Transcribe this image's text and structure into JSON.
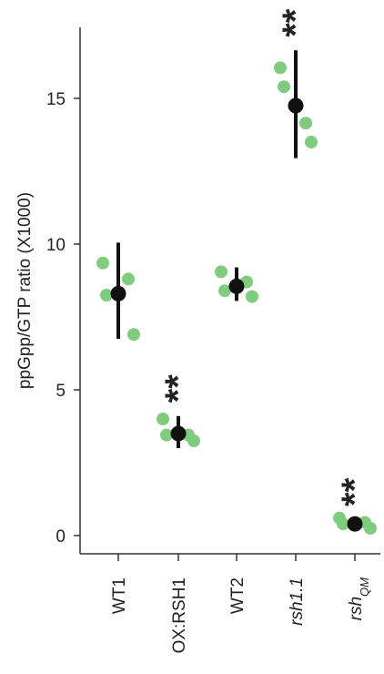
{
  "chart_data": {
    "type": "scatter",
    "ylabel": "ppGpp/GTP ratio (X1000)",
    "ylim": [
      0,
      17.5
    ],
    "yticks": [
      0,
      5,
      10,
      15
    ],
    "categories": [
      {
        "label": "WT1",
        "italic": false
      },
      {
        "label": "OX:RSH1",
        "italic": false
      },
      {
        "label": "WT2",
        "italic": false
      },
      {
        "label": "rsh1.1",
        "italic": true
      },
      {
        "label": "rsh",
        "subscript": "QM",
        "italic": true
      }
    ],
    "points": [
      [
        9.35,
        8.25,
        8.8,
        6.9
      ],
      [
        4.0,
        3.45,
        3.45,
        3.25
      ],
      [
        9.05,
        8.4,
        8.7,
        8.2
      ],
      [
        16.05,
        15.4,
        14.15,
        13.5
      ],
      [
        0.6,
        0.4,
        0.45,
        0.25
      ]
    ],
    "means": [
      8.3,
      3.5,
      8.55,
      14.75,
      0.4
    ],
    "error_low": [
      6.75,
      3.0,
      8.05,
      12.95,
      0.3
    ],
    "error_high": [
      10.05,
      4.1,
      9.2,
      16.65,
      0.55
    ],
    "significance": [
      "",
      "**",
      "",
      "**",
      "**"
    ],
    "point_color": "#7fcc7f",
    "mean_color": "#111111"
  }
}
